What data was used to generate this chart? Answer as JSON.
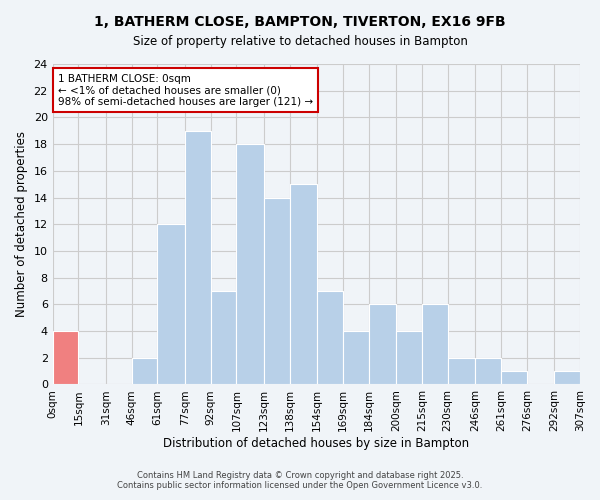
{
  "title": "1, BATHERM CLOSE, BAMPTON, TIVERTON, EX16 9FB",
  "subtitle": "Size of property relative to detached houses in Bampton",
  "xlabel": "Distribution of detached houses by size in Bampton",
  "ylabel": "Number of detached properties",
  "bin_edges": [
    0,
    15,
    31,
    46,
    61,
    77,
    92,
    107,
    123,
    138,
    154,
    169,
    184,
    200,
    215,
    230,
    246,
    261,
    276,
    292,
    307
  ],
  "bin_labels": [
    "0sqm",
    "15sqm",
    "31sqm",
    "46sqm",
    "61sqm",
    "77sqm",
    "92sqm",
    "107sqm",
    "123sqm",
    "138sqm",
    "154sqm",
    "169sqm",
    "184sqm",
    "200sqm",
    "215sqm",
    "230sqm",
    "246sqm",
    "261sqm",
    "276sqm",
    "292sqm",
    "307sqm"
  ],
  "bar_heights": [
    4,
    0,
    0,
    2,
    12,
    19,
    7,
    18,
    14,
    15,
    7,
    4,
    6,
    4,
    6,
    2,
    2,
    1,
    0,
    1
  ],
  "highlighted_bar_index": 0,
  "highlight_color": "#f08080",
  "normal_color": "#b8d0e8",
  "bar_edge_color": "#ffffff",
  "ylim": [
    0,
    24
  ],
  "yticks": [
    0,
    2,
    4,
    6,
    8,
    10,
    12,
    14,
    16,
    18,
    20,
    22,
    24
  ],
  "annotation_text": "1 BATHERM CLOSE: 0sqm\n← <1% of detached houses are smaller (0)\n98% of semi-detached houses are larger (121) →",
  "footer1": "Contains HM Land Registry data © Crown copyright and database right 2025.",
  "footer2": "Contains public sector information licensed under the Open Government Licence v3.0.",
  "background_color": "#f0f4f8",
  "grid_color": "#cccccc",
  "annotation_box_color": "#ffffff",
  "annotation_box_edge_color": "#cc0000"
}
